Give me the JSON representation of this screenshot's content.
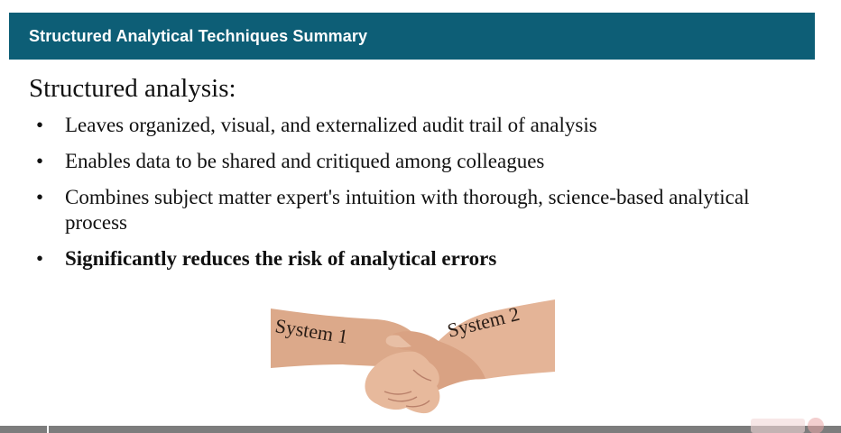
{
  "slide": {
    "title": "Structured Analytical Techniques Summary",
    "heading": "Structured analysis:",
    "bullets": [
      "Leaves organized, visual, and externalized audit trail of analysis",
      "Enables data to be shared and critiqued among colleagues",
      "Combines subject matter expert's intuition with thorough, science-based analytical process",
      "Significantly reduces the risk of analytical errors"
    ],
    "bullet_symbol": "•"
  },
  "image": {
    "left_label": "System 1",
    "right_label": "System 2"
  },
  "colors": {
    "title_bar": "#0d5e76",
    "title_text": "#ffffff",
    "body_text": "#111111",
    "bottom_bar": "#7d7d7d"
  }
}
